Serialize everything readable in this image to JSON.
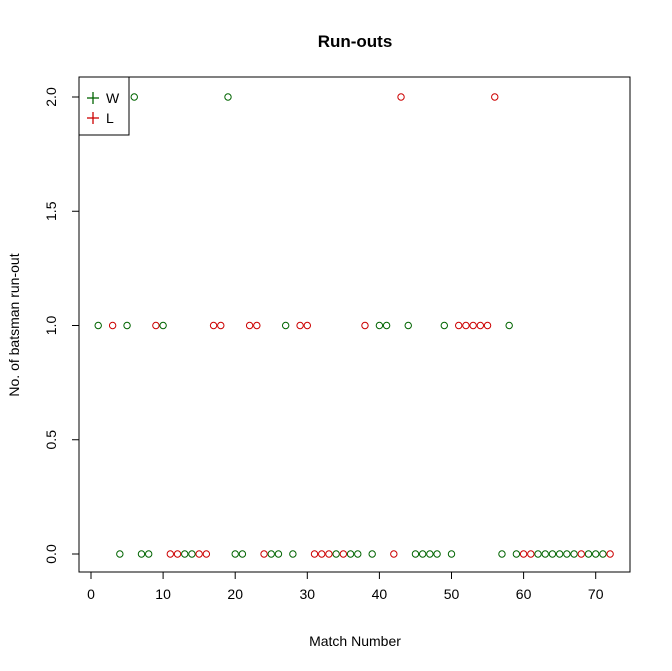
{
  "chart_data": {
    "type": "scatter",
    "title": "Run-outs",
    "xlabel": "Match Number",
    "ylabel": "No. of batsman run-out",
    "xlim": [
      0,
      72
    ],
    "ylim": [
      0,
      2
    ],
    "xticks": [
      "0",
      "10",
      "20",
      "30",
      "40",
      "50",
      "60",
      "70"
    ],
    "yticks": [
      "0.0",
      "0.5",
      "1.0",
      "1.5",
      "2.0"
    ],
    "legend": {
      "position": "top-left",
      "entries": [
        {
          "label": "W",
          "color": "#006400"
        },
        {
          "label": "L",
          "color": "#cc0000"
        }
      ]
    },
    "colors": {
      "W": "#006400",
      "L": "#cc0000"
    },
    "points": [
      {
        "x": 1,
        "y": 1,
        "result": "W"
      },
      {
        "x": 3,
        "y": 1,
        "result": "L"
      },
      {
        "x": 4,
        "y": 0,
        "result": "W"
      },
      {
        "x": 5,
        "y": 1,
        "result": "W"
      },
      {
        "x": 6,
        "y": 2,
        "result": "W"
      },
      {
        "x": 7,
        "y": 0,
        "result": "W"
      },
      {
        "x": 8,
        "y": 0,
        "result": "W"
      },
      {
        "x": 9,
        "y": 1,
        "result": "L"
      },
      {
        "x": 10,
        "y": 1,
        "result": "W"
      },
      {
        "x": 11,
        "y": 0,
        "result": "L"
      },
      {
        "x": 12,
        "y": 0,
        "result": "L"
      },
      {
        "x": 13,
        "y": 0,
        "result": "W"
      },
      {
        "x": 14,
        "y": 0,
        "result": "W"
      },
      {
        "x": 15,
        "y": 0,
        "result": "L"
      },
      {
        "x": 16,
        "y": 0,
        "result": "L"
      },
      {
        "x": 17,
        "y": 1,
        "result": "L"
      },
      {
        "x": 18,
        "y": 1,
        "result": "L"
      },
      {
        "x": 19,
        "y": 2,
        "result": "W"
      },
      {
        "x": 20,
        "y": 0,
        "result": "W"
      },
      {
        "x": 21,
        "y": 0,
        "result": "W"
      },
      {
        "x": 22,
        "y": 1,
        "result": "L"
      },
      {
        "x": 23,
        "y": 1,
        "result": "L"
      },
      {
        "x": 24,
        "y": 0,
        "result": "L"
      },
      {
        "x": 25,
        "y": 0,
        "result": "W"
      },
      {
        "x": 26,
        "y": 0,
        "result": "W"
      },
      {
        "x": 27,
        "y": 1,
        "result": "W"
      },
      {
        "x": 28,
        "y": 0,
        "result": "W"
      },
      {
        "x": 29,
        "y": 1,
        "result": "L"
      },
      {
        "x": 30,
        "y": 1,
        "result": "L"
      },
      {
        "x": 31,
        "y": 0,
        "result": "L"
      },
      {
        "x": 32,
        "y": 0,
        "result": "L"
      },
      {
        "x": 33,
        "y": 0,
        "result": "L"
      },
      {
        "x": 34,
        "y": 0,
        "result": "W"
      },
      {
        "x": 35,
        "y": 0,
        "result": "L"
      },
      {
        "x": 36,
        "y": 0,
        "result": "W"
      },
      {
        "x": 37,
        "y": 0,
        "result": "W"
      },
      {
        "x": 38,
        "y": 1,
        "result": "L"
      },
      {
        "x": 39,
        "y": 0,
        "result": "W"
      },
      {
        "x": 40,
        "y": 1,
        "result": "W"
      },
      {
        "x": 41,
        "y": 1,
        "result": "W"
      },
      {
        "x": 42,
        "y": 0,
        "result": "L"
      },
      {
        "x": 43,
        "y": 2,
        "result": "L"
      },
      {
        "x": 44,
        "y": 1,
        "result": "W"
      },
      {
        "x": 45,
        "y": 0,
        "result": "W"
      },
      {
        "x": 46,
        "y": 0,
        "result": "W"
      },
      {
        "x": 47,
        "y": 0,
        "result": "W"
      },
      {
        "x": 48,
        "y": 0,
        "result": "W"
      },
      {
        "x": 49,
        "y": 1,
        "result": "W"
      },
      {
        "x": 50,
        "y": 0,
        "result": "W"
      },
      {
        "x": 51,
        "y": 1,
        "result": "L"
      },
      {
        "x": 52,
        "y": 1,
        "result": "L"
      },
      {
        "x": 53,
        "y": 1,
        "result": "L"
      },
      {
        "x": 54,
        "y": 1,
        "result": "L"
      },
      {
        "x": 55,
        "y": 1,
        "result": "L"
      },
      {
        "x": 56,
        "y": 2,
        "result": "L"
      },
      {
        "x": 57,
        "y": 0,
        "result": "W"
      },
      {
        "x": 58,
        "y": 1,
        "result": "W"
      },
      {
        "x": 59,
        "y": 0,
        "result": "W"
      },
      {
        "x": 60,
        "y": 0,
        "result": "L"
      },
      {
        "x": 61,
        "y": 0,
        "result": "L"
      },
      {
        "x": 62,
        "y": 0,
        "result": "W"
      },
      {
        "x": 63,
        "y": 0,
        "result": "W"
      },
      {
        "x": 64,
        "y": 0,
        "result": "W"
      },
      {
        "x": 65,
        "y": 0,
        "result": "W"
      },
      {
        "x": 66,
        "y": 0,
        "result": "W"
      },
      {
        "x": 67,
        "y": 0,
        "result": "W"
      },
      {
        "x": 68,
        "y": 0,
        "result": "L"
      },
      {
        "x": 69,
        "y": 0,
        "result": "W"
      },
      {
        "x": 70,
        "y": 0,
        "result": "W"
      },
      {
        "x": 71,
        "y": 0,
        "result": "W"
      },
      {
        "x": 72,
        "y": 0,
        "result": "L"
      }
    ]
  }
}
